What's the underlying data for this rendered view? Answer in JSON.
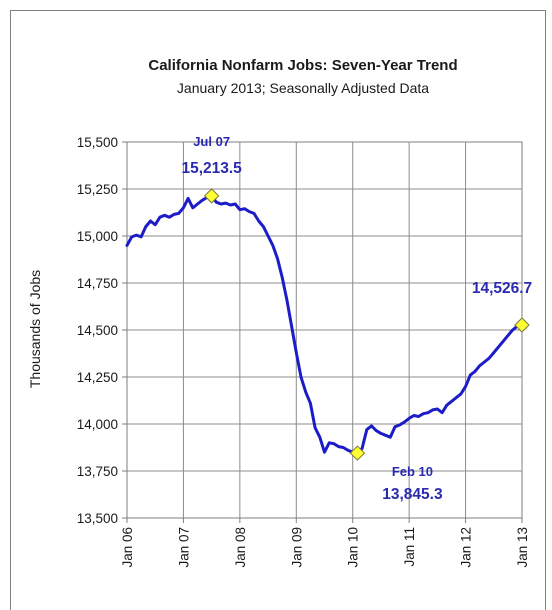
{
  "chart_data": {
    "type": "line",
    "title": "California Nonfarm Jobs: Seven-Year Trend",
    "subtitle": "January 2013; Seasonally Adjusted Data",
    "ylabel": "Thousands of Jobs",
    "xlabel": "",
    "ylim": [
      13500,
      15500
    ],
    "y_ticks": [
      "13,500",
      "13,750",
      "14,000",
      "14,250",
      "14,500",
      "14,750",
      "15,000",
      "15,250",
      "15,500"
    ],
    "x_ticks": [
      "Jan 06",
      "Jan 07",
      "Jan 08",
      "Jan 09",
      "Jan 10",
      "Jan 11",
      "Jan 12",
      "Jan 13"
    ],
    "grid": true,
    "line_color": "#1c1cc8",
    "marker_color": "#ffff33",
    "annotation_color": "#2a2ab0",
    "series": [
      {
        "points": [
          [
            "2006-01",
            14950
          ],
          [
            "2006-02",
            14995
          ],
          [
            "2006-03",
            15005
          ],
          [
            "2006-04",
            14995
          ],
          [
            "2006-05",
            15050
          ],
          [
            "2006-06",
            15080
          ],
          [
            "2006-07",
            15060
          ],
          [
            "2006-08",
            15100
          ],
          [
            "2006-09",
            15110
          ],
          [
            "2006-10",
            15100
          ],
          [
            "2006-11",
            15115
          ],
          [
            "2006-12",
            15120
          ],
          [
            "2007-01",
            15150
          ],
          [
            "2007-02",
            15200
          ],
          [
            "2007-03",
            15150
          ],
          [
            "2007-04",
            15170
          ],
          [
            "2007-05",
            15190
          ],
          [
            "2007-06",
            15205
          ],
          [
            "2007-07",
            15213.5
          ],
          [
            "2007-08",
            15180
          ],
          [
            "2007-09",
            15170
          ],
          [
            "2007-10",
            15175
          ],
          [
            "2007-11",
            15165
          ],
          [
            "2007-12",
            15170
          ],
          [
            "2008-01",
            15140
          ],
          [
            "2008-02",
            15145
          ],
          [
            "2008-03",
            15130
          ],
          [
            "2008-04",
            15120
          ],
          [
            "2008-05",
            15080
          ],
          [
            "2008-06",
            15050
          ],
          [
            "2008-07",
            15000
          ],
          [
            "2008-08",
            14950
          ],
          [
            "2008-09",
            14880
          ],
          [
            "2008-10",
            14780
          ],
          [
            "2008-11",
            14660
          ],
          [
            "2008-12",
            14520
          ],
          [
            "2009-01",
            14380
          ],
          [
            "2009-02",
            14250
          ],
          [
            "2009-03",
            14170
          ],
          [
            "2009-04",
            14110
          ],
          [
            "2009-05",
            13980
          ],
          [
            "2009-06",
            13930
          ],
          [
            "2009-07",
            13850
          ],
          [
            "2009-08",
            13900
          ],
          [
            "2009-09",
            13895
          ],
          [
            "2009-10",
            13880
          ],
          [
            "2009-11",
            13875
          ],
          [
            "2009-12",
            13860
          ],
          [
            "2010-01",
            13850
          ],
          [
            "2010-02",
            13845.3
          ],
          [
            "2010-03",
            13870
          ],
          [
            "2010-04",
            13970
          ],
          [
            "2010-05",
            13990
          ],
          [
            "2010-06",
            13965
          ],
          [
            "2010-07",
            13950
          ],
          [
            "2010-08",
            13940
          ],
          [
            "2010-09",
            13930
          ],
          [
            "2010-10",
            13985
          ],
          [
            "2010-11",
            13995
          ],
          [
            "2010-12",
            14010
          ],
          [
            "2011-01",
            14030
          ],
          [
            "2011-02",
            14045
          ],
          [
            "2011-03",
            14040
          ],
          [
            "2011-04",
            14055
          ],
          [
            "2011-05",
            14060
          ],
          [
            "2011-06",
            14075
          ],
          [
            "2011-07",
            14080
          ],
          [
            "2011-08",
            14060
          ],
          [
            "2011-09",
            14100
          ],
          [
            "2011-10",
            14120
          ],
          [
            "2011-11",
            14140
          ],
          [
            "2011-12",
            14160
          ],
          [
            "2012-01",
            14200
          ],
          [
            "2012-02",
            14260
          ],
          [
            "2012-03",
            14280
          ],
          [
            "2012-04",
            14310
          ],
          [
            "2012-05",
            14330
          ],
          [
            "2012-06",
            14350
          ],
          [
            "2012-07",
            14380
          ],
          [
            "2012-08",
            14410
          ],
          [
            "2012-09",
            14440
          ],
          [
            "2012-10",
            14470
          ],
          [
            "2012-11",
            14500
          ],
          [
            "2012-12",
            14520
          ],
          [
            "2013-01",
            14526.7
          ]
        ]
      }
    ],
    "annotations": [
      {
        "date": "2007-07",
        "value": 15213.5,
        "date_label": "Jul 07",
        "value_label": "15,213.5"
      },
      {
        "date": "2010-02",
        "value": 13845.3,
        "date_label": "Feb 10",
        "value_label": "13,845.3"
      },
      {
        "date": "2013-01",
        "value": 14526.7,
        "date_label": "",
        "value_label": "14,526.7"
      }
    ]
  }
}
